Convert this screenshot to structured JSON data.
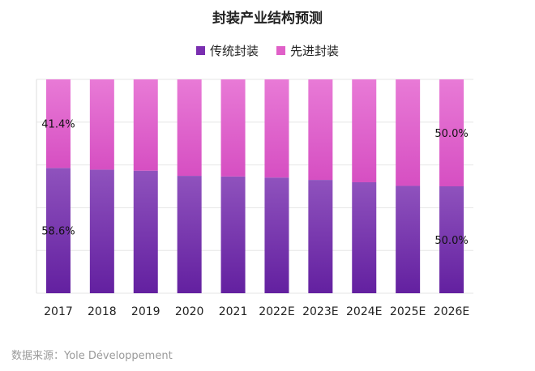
{
  "chart_data": {
    "type": "bar",
    "stacked": true,
    "title": "封装产业结构预测",
    "categories": [
      "2017",
      "2018",
      "2019",
      "2020",
      "2021",
      "2022E",
      "2023E",
      "2024E",
      "2025E",
      "2026E"
    ],
    "series": [
      {
        "name": "传统封装",
        "color": "#7a2fb0",
        "values": [
          58.6,
          57.8,
          57.3,
          54.9,
          54.6,
          54.1,
          53.0,
          51.9,
          50.2,
          50.0
        ]
      },
      {
        "name": "先进封装",
        "color": "#e060c8",
        "values": [
          41.4,
          42.2,
          42.7,
          45.1,
          45.4,
          45.9,
          47.0,
          48.1,
          49.8,
          50.0
        ]
      }
    ],
    "data_labels": [
      {
        "category": "2017",
        "series": "先进封装",
        "text": "41.4%"
      },
      {
        "category": "2017",
        "series": "传统封装",
        "text": "58.6%"
      },
      {
        "category": "2026E",
        "series": "先进封装",
        "text": "50.0%"
      },
      {
        "category": "2026E",
        "series": "传统封装",
        "text": "50.0%"
      }
    ],
    "ylim": [
      0,
      100
    ],
    "legend_position": "top-center",
    "grid": true
  },
  "source_note": "数据来源：Yole Développement"
}
